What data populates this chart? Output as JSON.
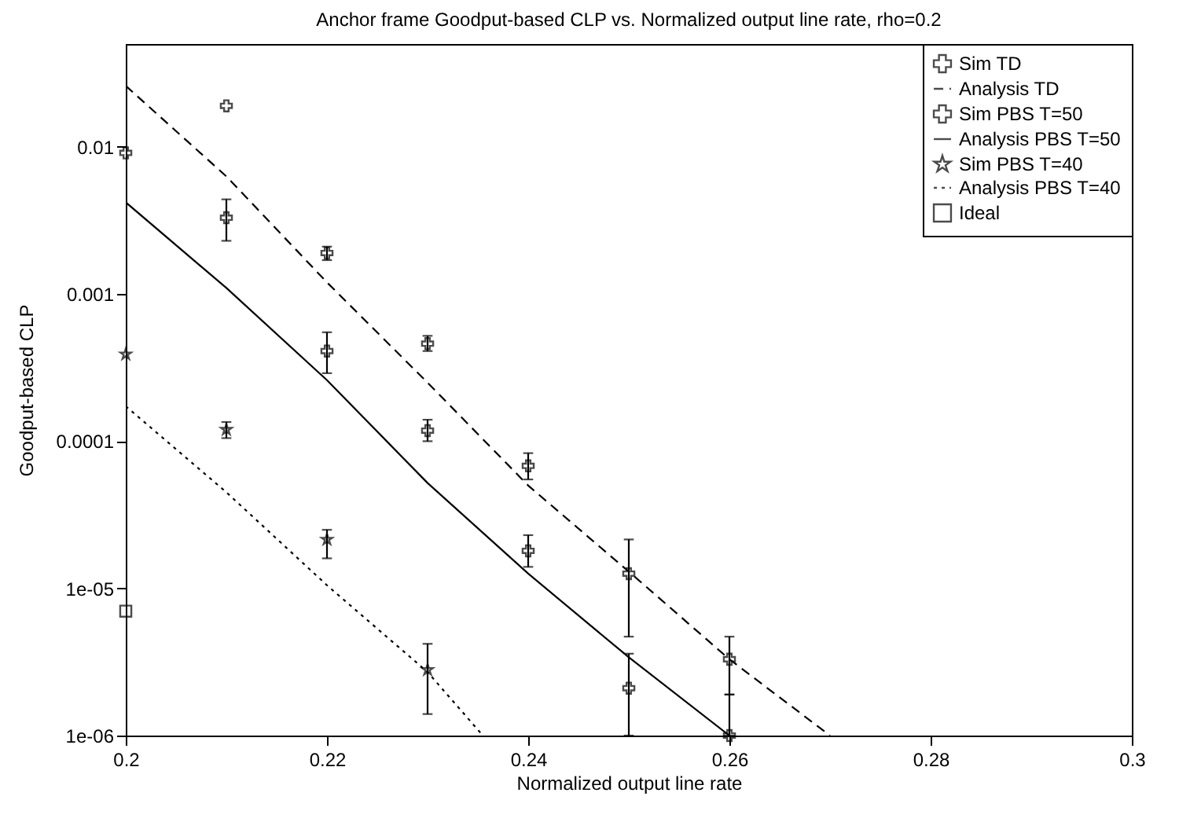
{
  "chart_data": {
    "type": "scatter",
    "title": "Anchor frame Goodput-based CLP vs. Normalized output line rate, rho=0.2",
    "xlabel": "Normalized output line rate",
    "ylabel": "Goodput-based CLP",
    "log": "y",
    "xlim": [
      0.2,
      0.3
    ],
    "xticks": [
      0.2,
      0.22,
      0.24,
      0.26,
      0.28,
      0.3
    ],
    "ylim": [
      1e-06,
      0.05
    ],
    "yticks": [
      {
        "value": 1e-06,
        "label": "1e-06"
      },
      {
        "value": 1e-05,
        "label": "1e-05"
      },
      0.0001,
      0.001,
      0.01
    ],
    "grid": false,
    "legend": "top right",
    "series": [
      {
        "name": "Sim TD",
        "marker": "cross",
        "color": "#000000",
        "x": [
          0.21,
          0.22,
          0.23,
          0.24,
          0.25,
          0.26
        ],
        "values": [
          0.019,
          0.0019,
          0.00046,
          6.8e-05,
          1.26e-05,
          3.3e-06
        ],
        "errors": [
          null,
          [
            0.0017,
            0.0021
          ],
          [
            0.00041,
            0.00052
          ],
          [
            5.5e-05,
            8.3e-05
          ],
          [
            4.7e-06,
            2.15e-05
          ],
          [
            1.9e-06,
            4.7e-06
          ]
        ]
      },
      {
        "name": "Analysis TD",
        "type": "line",
        "line_style": "dashed",
        "color": "#000000",
        "x": [
          0.2,
          0.21,
          0.22,
          0.23,
          0.24,
          0.25,
          0.26,
          0.27
        ],
        "values": [
          0.026,
          0.0063,
          0.0012,
          0.00025,
          5e-05,
          1.3e-05,
          3.3e-06,
          1e-06
        ]
      },
      {
        "name": "Sim PBS T=50",
        "marker": "cross",
        "color": "#000000",
        "x": [
          0.2,
          0.21,
          0.22,
          0.23,
          0.24,
          0.25,
          0.26
        ],
        "values": [
          0.0091,
          0.0033,
          0.00041,
          0.000118,
          1.8e-05,
          2.1e-06,
          1e-06
        ],
        "errors": [
          null,
          [
            0.0023,
            0.0044
          ],
          [
            0.00029,
            0.00055
          ],
          [
            0.0001,
            0.00014
          ],
          [
            1.4e-05,
            2.3e-05
          ],
          [
            1e-06,
            3.6e-06
          ],
          [
            1e-06,
            1.9e-06
          ]
        ]
      },
      {
        "name": "Analysis PBS T=50",
        "type": "line",
        "line_style": "solid",
        "color": "#000000",
        "x": [
          0.2,
          0.21,
          0.22,
          0.23,
          0.24,
          0.25,
          0.26
        ],
        "values": [
          0.0042,
          0.0011,
          0.00026,
          5.2e-05,
          1.26e-05,
          3.4e-06,
          1e-06
        ]
      },
      {
        "name": "Sim PBS T=40",
        "marker": "star",
        "color": "#000000",
        "x": [
          0.2,
          0.21,
          0.22,
          0.23
        ],
        "values": [
          0.00039,
          0.00012,
          2.15e-05,
          2.8e-06
        ],
        "errors": [
          null,
          [
            0.000105,
            0.000135
          ],
          [
            1.6e-05,
            2.5e-05
          ],
          [
            1.4e-06,
            4.2e-06
          ]
        ]
      },
      {
        "name": "Analysis PBS T=40",
        "type": "line",
        "line_style": "dotted",
        "color": "#000000",
        "x": [
          0.2,
          0.21,
          0.22,
          0.23,
          0.2355
        ],
        "values": [
          0.000173,
          4.5e-05,
          1.05e-05,
          2.7e-06,
          1e-06
        ]
      },
      {
        "name": "Ideal",
        "marker": "square",
        "color": "#000000",
        "x": [
          0.2
        ],
        "values": [
          7e-06
        ]
      }
    ]
  }
}
